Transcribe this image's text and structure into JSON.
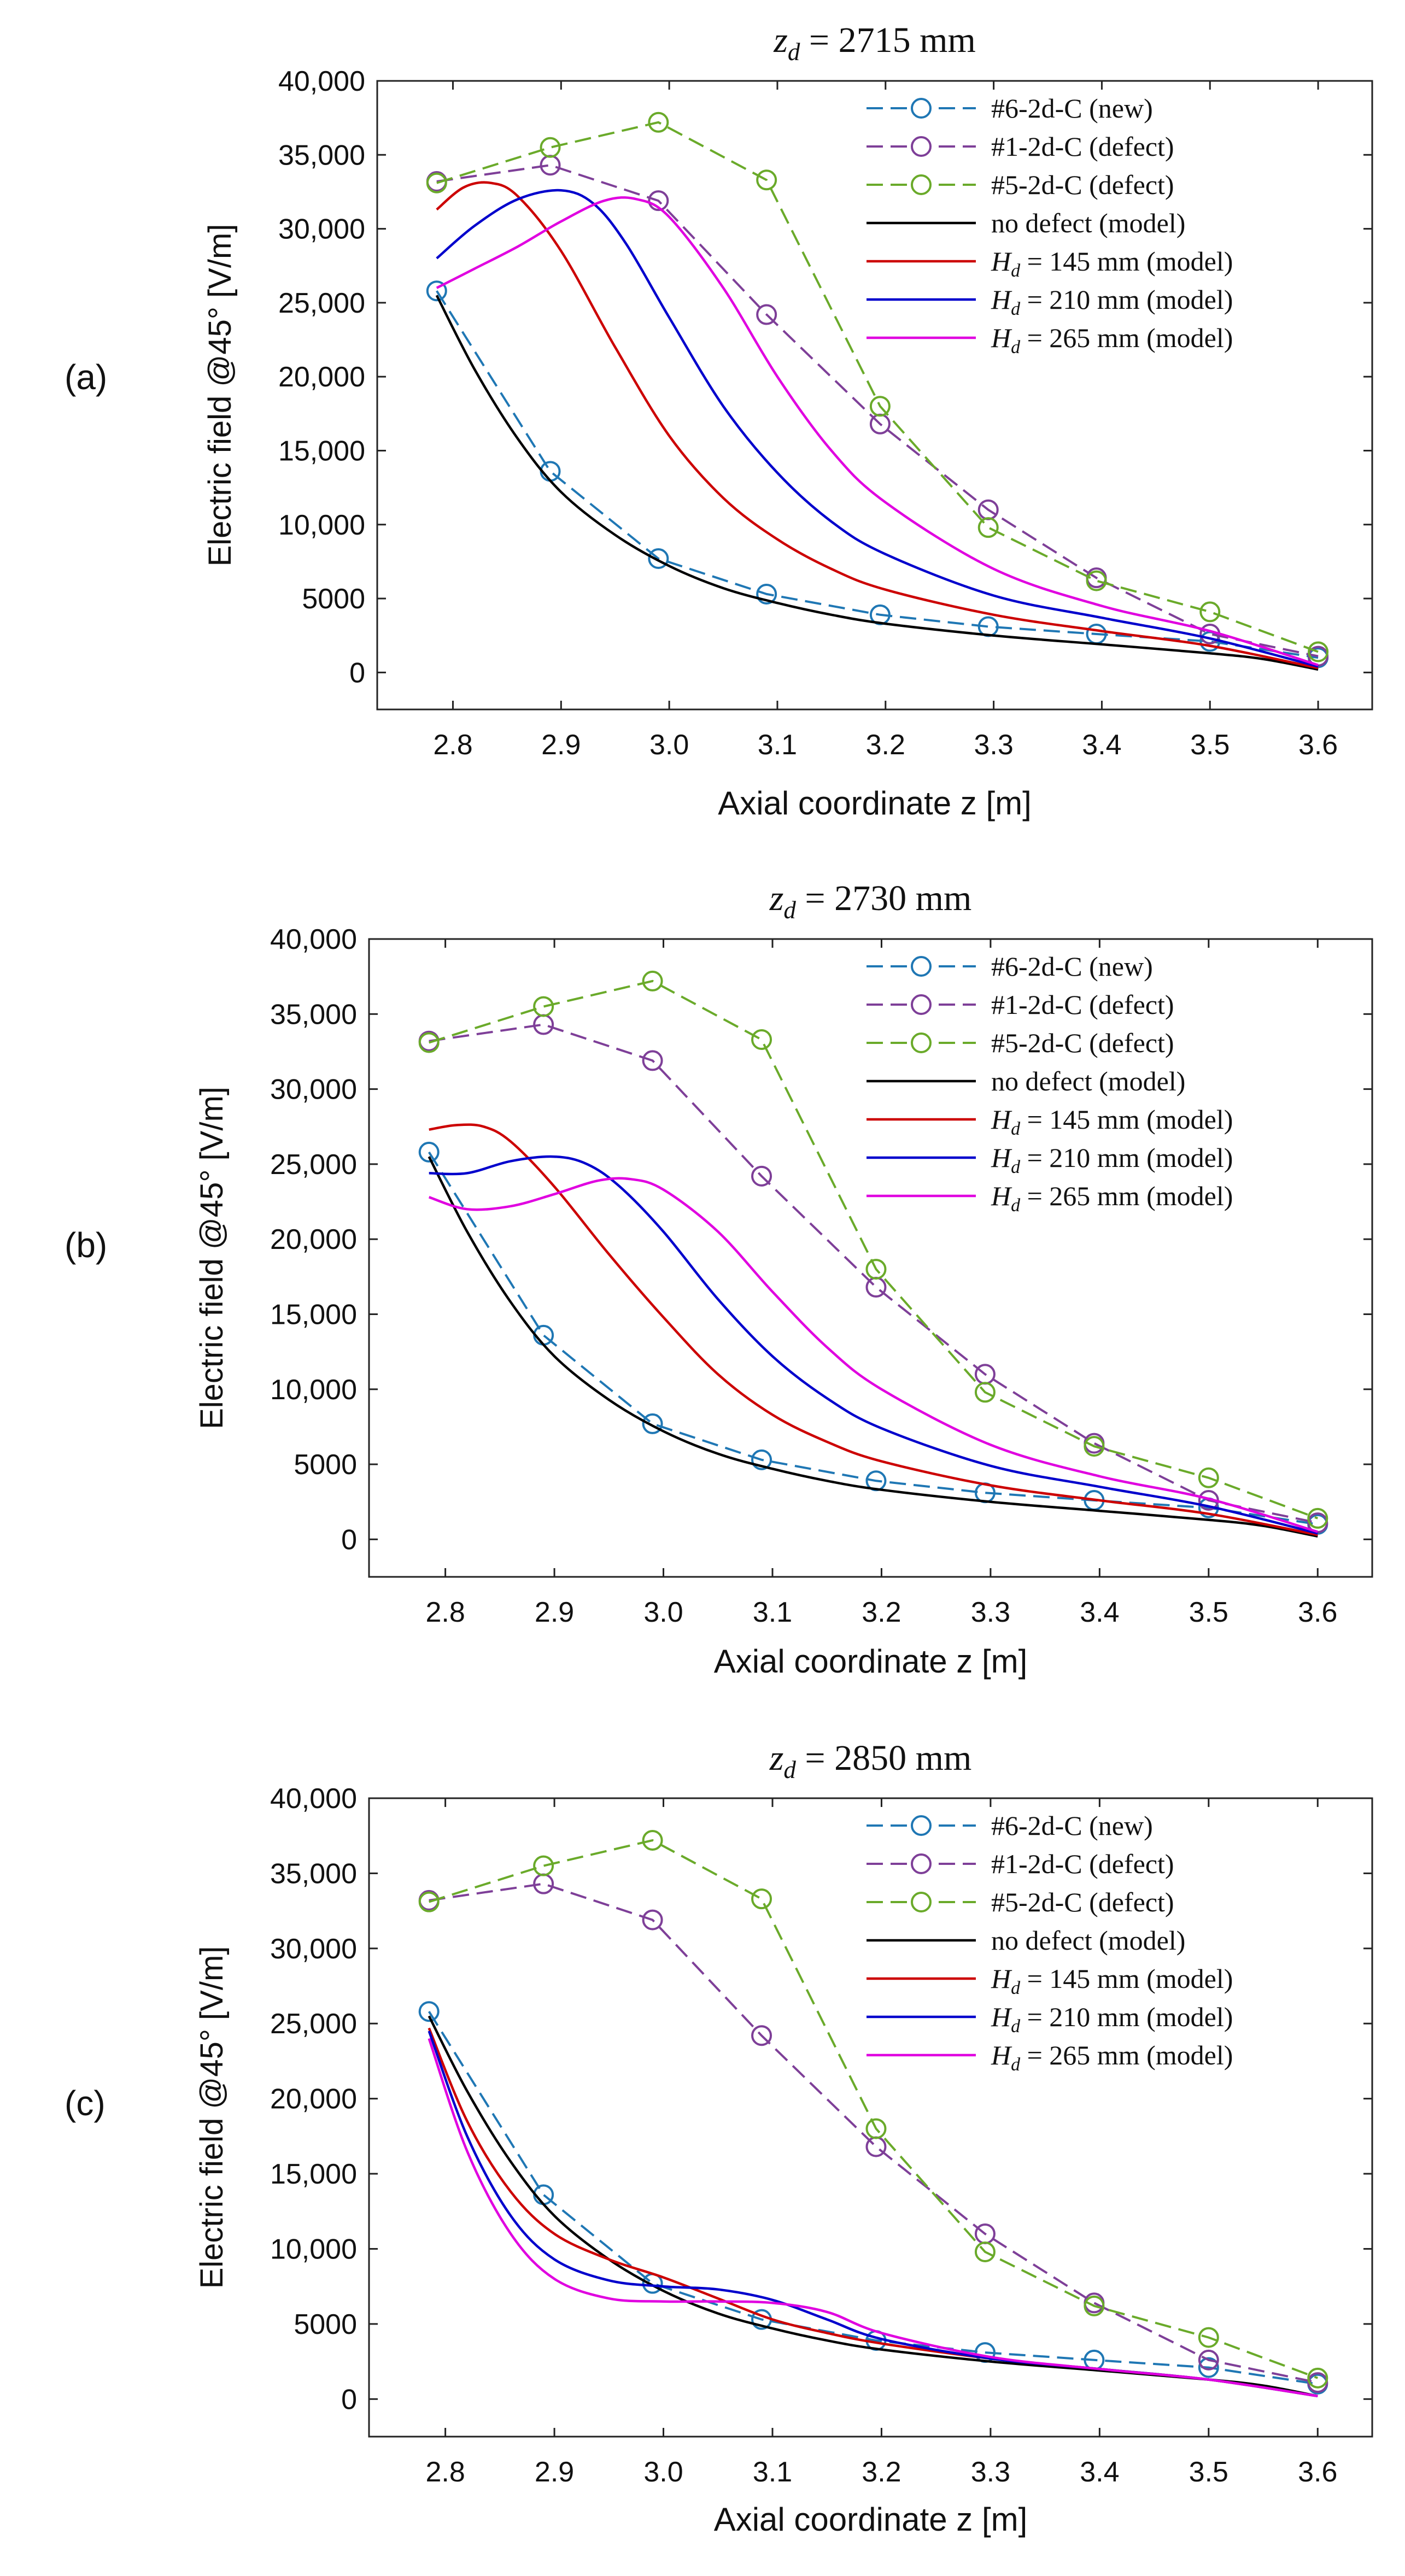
{
  "colors": {
    "new": "#1f77b4",
    "defect1": "#7e3f98",
    "defect5": "#6aaa2a",
    "nodefect": "#000000",
    "h145": "#cc0000",
    "h210": "#0000cc",
    "h265": "#e000e0"
  },
  "chart_data": [
    {
      "type": "line",
      "panel_label": "(a)",
      "title": "z_d = 2715 mm",
      "title_var": "z",
      "title_sub": "d",
      "title_rest": " = 2715 mm",
      "xlabel": "Axial coordinate z [m]",
      "ylabel": "Electric field @45° [V/m]",
      "xlim": [
        2.73,
        3.65
      ],
      "ylim": [
        -2500,
        40000
      ],
      "xticks": [
        "2.8",
        "2.9",
        "3.0",
        "3.1",
        "3.2",
        "3.3",
        "3.4",
        "3.5",
        "3.6"
      ],
      "yticks": [
        "0",
        "5000",
        "10,000",
        "15,000",
        "20,000",
        "25,000",
        "30,000",
        "35,000",
        "40,000"
      ],
      "legend": "top-right",
      "series": [
        {
          "name": "#6-2d-C (new)",
          "style": "dashed-marker",
          "x": [
            2.785,
            2.89,
            2.99,
            3.09,
            3.195,
            3.295,
            3.395,
            3.5,
            3.6
          ],
          "values": [
            25800,
            13600,
            7700,
            5300,
            3900,
            3100,
            2600,
            2100,
            1000
          ]
        },
        {
          "name": "#1-2d-C (defect)",
          "style": "dashed-marker",
          "x": [
            2.785,
            2.89,
            2.99,
            3.09,
            3.195,
            3.295,
            3.395,
            3.5,
            3.6
          ],
          "values": [
            33200,
            34300,
            31900,
            24200,
            16800,
            11000,
            6400,
            2600,
            1100
          ]
        },
        {
          "name": "#5-2d-C (defect)",
          "style": "dashed-marker",
          "x": [
            2.785,
            2.89,
            2.99,
            3.09,
            3.195,
            3.295,
            3.395,
            3.5,
            3.6
          ],
          "values": [
            33100,
            35500,
            37200,
            33300,
            18000,
            9800,
            6200,
            4100,
            1400
          ]
        },
        {
          "name": "no defect (model)",
          "style": "solid",
          "x": [
            2.785,
            2.82,
            2.86,
            2.9,
            2.95,
            3.0,
            3.05,
            3.1,
            3.15,
            3.2,
            3.3,
            3.4,
            3.5,
            3.55,
            3.6
          ],
          "values": [
            25500,
            20500,
            15800,
            12200,
            9300,
            7200,
            5700,
            4700,
            3900,
            3300,
            2500,
            1900,
            1300,
            900,
            200
          ]
        },
        {
          "name": "H_d = 145 mm (model)",
          "label_var": "H",
          "label_sub": "d",
          "label_rest": " = 145 mm (model)",
          "style": "solid",
          "x": [
            2.785,
            2.81,
            2.835,
            2.86,
            2.9,
            2.95,
            3.0,
            3.05,
            3.1,
            3.15,
            3.2,
            3.3,
            3.4,
            3.5,
            3.6
          ],
          "values": [
            31300,
            32800,
            33100,
            32200,
            28500,
            22000,
            16000,
            11800,
            9000,
            7000,
            5600,
            3900,
            2800,
            1800,
            300
          ]
        },
        {
          "name": "H_d = 210 mm (model)",
          "label_var": "H",
          "label_sub": "d",
          "label_rest": " = 210 mm (model)",
          "style": "solid",
          "x": [
            2.785,
            2.82,
            2.86,
            2.9,
            2.93,
            2.96,
            3.0,
            3.05,
            3.1,
            3.15,
            3.2,
            3.3,
            3.4,
            3.5,
            3.6
          ],
          "values": [
            28000,
            30200,
            32000,
            32600,
            31700,
            29000,
            24000,
            18000,
            13500,
            10200,
            8000,
            5200,
            3700,
            2300,
            400
          ]
        },
        {
          "name": "H_d = 265 mm (model)",
          "label_var": "H",
          "label_sub": "d",
          "label_rest": " = 265 mm (model)",
          "style": "solid",
          "x": [
            2.785,
            2.82,
            2.86,
            2.9,
            2.94,
            2.97,
            3.0,
            3.05,
            3.1,
            3.15,
            3.2,
            3.3,
            3.4,
            3.5,
            3.6
          ],
          "values": [
            26000,
            27300,
            28800,
            30500,
            31900,
            32000,
            30800,
            26000,
            20000,
            15000,
            11500,
            7000,
            4500,
            2800,
            500
          ]
        }
      ]
    },
    {
      "type": "line",
      "panel_label": "(b)",
      "title": "z_d = 2730 mm",
      "title_var": "z",
      "title_sub": "d",
      "title_rest": " = 2730 mm",
      "xlabel": "Axial coordinate z [m]",
      "ylabel": "Electric field @45° [V/m]",
      "xlim": [
        2.73,
        3.65
      ],
      "ylim": [
        -2500,
        40000
      ],
      "xticks": [
        "2.8",
        "2.9",
        "3.0",
        "3.1",
        "3.2",
        "3.3",
        "3.4",
        "3.5",
        "3.6"
      ],
      "yticks": [
        "0",
        "5000",
        "10,000",
        "15,000",
        "20,000",
        "25,000",
        "30,000",
        "35,000",
        "40,000"
      ],
      "legend": "top-right",
      "series": [
        {
          "name": "#6-2d-C (new)",
          "style": "dashed-marker",
          "x": [
            2.785,
            2.89,
            2.99,
            3.09,
            3.195,
            3.295,
            3.395,
            3.5,
            3.6
          ],
          "values": [
            25800,
            13600,
            7700,
            5300,
            3900,
            3100,
            2600,
            2100,
            1000
          ]
        },
        {
          "name": "#1-2d-C (defect)",
          "style": "dashed-marker",
          "x": [
            2.785,
            2.89,
            2.99,
            3.09,
            3.195,
            3.295,
            3.395,
            3.5,
            3.6
          ],
          "values": [
            33200,
            34300,
            31900,
            24200,
            16800,
            11000,
            6400,
            2600,
            1100
          ]
        },
        {
          "name": "#5-2d-C (defect)",
          "style": "dashed-marker",
          "x": [
            2.785,
            2.89,
            2.99,
            3.09,
            3.195,
            3.295,
            3.395,
            3.5,
            3.6
          ],
          "values": [
            33100,
            35500,
            37200,
            33300,
            18000,
            9800,
            6200,
            4100,
            1400
          ]
        },
        {
          "name": "no defect (model)",
          "style": "solid",
          "x": [
            2.785,
            2.82,
            2.86,
            2.9,
            2.95,
            3.0,
            3.05,
            3.1,
            3.15,
            3.2,
            3.3,
            3.4,
            3.5,
            3.55,
            3.6
          ],
          "values": [
            25500,
            20500,
            15800,
            12200,
            9300,
            7200,
            5700,
            4700,
            3900,
            3300,
            2500,
            1900,
            1300,
            900,
            200
          ]
        },
        {
          "name": "H_d = 145 mm (model)",
          "label_var": "H",
          "label_sub": "d",
          "label_rest": " = 145 mm (model)",
          "style": "solid",
          "x": [
            2.785,
            2.81,
            2.835,
            2.86,
            2.9,
            2.95,
            3.0,
            3.05,
            3.1,
            3.15,
            3.2,
            3.3,
            3.4,
            3.5,
            3.6
          ],
          "values": [
            27300,
            27600,
            27500,
            26500,
            23500,
            19000,
            14800,
            11000,
            8300,
            6500,
            5200,
            3600,
            2600,
            1700,
            300
          ]
        },
        {
          "name": "H_d = 210 mm (model)",
          "label_var": "H",
          "label_sub": "d",
          "label_rest": " = 210 mm (model)",
          "style": "solid",
          "x": [
            2.785,
            2.82,
            2.86,
            2.9,
            2.93,
            2.96,
            3.0,
            3.05,
            3.1,
            3.15,
            3.2,
            3.3,
            3.4,
            3.5,
            3.6
          ],
          "values": [
            24400,
            24400,
            25200,
            25500,
            25000,
            23500,
            20500,
            16000,
            12200,
            9400,
            7400,
            4900,
            3500,
            2200,
            400
          ]
        },
        {
          "name": "H_d = 265 mm (model)",
          "label_var": "H",
          "label_sub": "d",
          "label_rest": " = 265 mm (model)",
          "style": "solid",
          "x": [
            2.785,
            2.82,
            2.86,
            2.9,
            2.94,
            2.97,
            3.0,
            3.05,
            3.1,
            3.15,
            3.2,
            3.3,
            3.4,
            3.5,
            3.6
          ],
          "values": [
            22800,
            22000,
            22200,
            23000,
            23900,
            24000,
            23300,
            20500,
            16500,
            12800,
            10000,
            6300,
            4200,
            2700,
            500
          ]
        }
      ]
    },
    {
      "type": "line",
      "panel_label": "(c)",
      "title": "z_d = 2850 mm",
      "title_var": "z",
      "title_sub": "d",
      "title_rest": " = 2850 mm",
      "xlabel": "Axial coordinate z [m]",
      "ylabel": "Electric field @45° [V/m]",
      "xlim": [
        2.73,
        3.65
      ],
      "ylim": [
        -2500,
        40000
      ],
      "xticks": [
        "2.8",
        "2.9",
        "3.0",
        "3.1",
        "3.2",
        "3.3",
        "3.4",
        "3.5",
        "3.6"
      ],
      "yticks": [
        "0",
        "5000",
        "10,000",
        "15,000",
        "20,000",
        "25,000",
        "30,000",
        "35,000",
        "40,000"
      ],
      "legend": "top-right",
      "series": [
        {
          "name": "#6-2d-C (new)",
          "style": "dashed-marker",
          "x": [
            2.785,
            2.89,
            2.99,
            3.09,
            3.195,
            3.295,
            3.395,
            3.5,
            3.6
          ],
          "values": [
            25800,
            13600,
            7700,
            5300,
            3900,
            3100,
            2600,
            2100,
            1000
          ]
        },
        {
          "name": "#1-2d-C (defect)",
          "style": "dashed-marker",
          "x": [
            2.785,
            2.89,
            2.99,
            3.09,
            3.195,
            3.295,
            3.395,
            3.5,
            3.6
          ],
          "values": [
            33200,
            34300,
            31900,
            24200,
            16800,
            11000,
            6400,
            2600,
            1100
          ]
        },
        {
          "name": "#5-2d-C (defect)",
          "style": "dashed-marker",
          "x": [
            2.785,
            2.89,
            2.99,
            3.09,
            3.195,
            3.295,
            3.395,
            3.5,
            3.6
          ],
          "values": [
            33100,
            35500,
            37200,
            33300,
            18000,
            9800,
            6200,
            4100,
            1400
          ]
        },
        {
          "name": "no defect (model)",
          "style": "solid",
          "x": [
            2.785,
            2.82,
            2.86,
            2.9,
            2.95,
            3.0,
            3.05,
            3.1,
            3.15,
            3.2,
            3.3,
            3.4,
            3.5,
            3.55,
            3.6
          ],
          "values": [
            25500,
            20500,
            15800,
            12200,
            9300,
            7200,
            5700,
            4700,
            3900,
            3300,
            2500,
            1900,
            1300,
            900,
            200
          ]
        },
        {
          "name": "H_d = 145 mm (model)",
          "label_var": "H",
          "label_sub": "d",
          "label_rest": " = 145 mm (model)",
          "style": "solid",
          "x": [
            2.785,
            2.82,
            2.86,
            2.9,
            2.95,
            3.0,
            3.05,
            3.1,
            3.15,
            3.2,
            3.3,
            3.4,
            3.5,
            3.6
          ],
          "values": [
            24700,
            18500,
            13800,
            11000,
            9300,
            8100,
            6700,
            5300,
            4400,
            3700,
            2700,
            2000,
            1300,
            200
          ]
        },
        {
          "name": "H_d = 210 mm (model)",
          "label_var": "H",
          "label_sub": "d",
          "label_rest": " = 210 mm (model)",
          "style": "solid",
          "x": [
            2.785,
            2.82,
            2.86,
            2.9,
            2.95,
            3.0,
            3.05,
            3.1,
            3.15,
            3.2,
            3.3,
            3.4,
            3.5,
            3.6
          ],
          "values": [
            24500,
            17500,
            12200,
            9300,
            7900,
            7500,
            7300,
            6600,
            5300,
            4000,
            2700,
            2000,
            1300,
            200
          ]
        },
        {
          "name": "H_d = 265 mm (model)",
          "label_var": "H",
          "label_sub": "d",
          "label_rest": " = 265 mm (model)",
          "style": "solid",
          "x": [
            2.785,
            2.82,
            2.86,
            2.9,
            2.95,
            3.0,
            3.05,
            3.1,
            3.15,
            3.2,
            3.3,
            3.4,
            3.5,
            3.6
          ],
          "values": [
            24000,
            16500,
            11000,
            8000,
            6700,
            6500,
            6500,
            6400,
            5800,
            4400,
            2800,
            2000,
            1300,
            200
          ]
        }
      ]
    }
  ]
}
